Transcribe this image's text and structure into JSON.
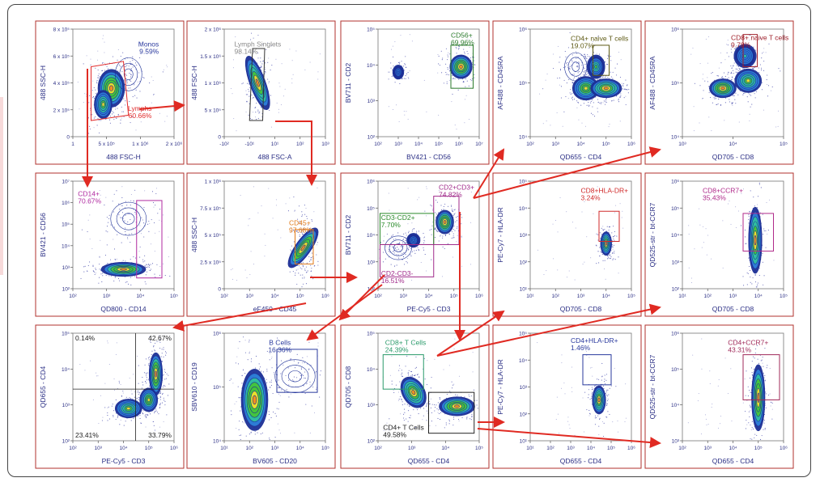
{
  "colors": {
    "panel_border": "#b0302c",
    "arrow": "#e02a22",
    "axis_text": "#2b2f85",
    "contour": "#1c2f96",
    "dots": "#5a5fb5"
  },
  "chart_data": [
    {
      "id": "p1",
      "type": "scatter",
      "xlabel": "488 FSC-H",
      "ylabel": "488 SSC-H",
      "x_ticks": [
        "1",
        "5 x 10⁵",
        "1 x 10⁶",
        "2 x 10⁶"
      ],
      "y_ticks": [
        "8 x 10⁵",
        "6 x 10⁵",
        "4 x 10⁵",
        "2 x 10⁵",
        "0"
      ],
      "gates": [
        {
          "name": "Monos",
          "value": "9.59%",
          "color": "#2b3a9e"
        },
        {
          "name": "Lymphs",
          "value": "60.66%",
          "color": "#e12b2b"
        }
      ]
    },
    {
      "id": "p2",
      "type": "scatter",
      "xlabel": "488 FSC-A",
      "ylabel": "488 FSC-H",
      "x_ticks": [
        "-10²",
        "-10¹",
        "10¹",
        "10²",
        "10³"
      ],
      "y_ticks": [
        "2 x 10⁶",
        "1.5 x 10⁶",
        "1 x 10⁶",
        "5 x 10⁵",
        "0"
      ],
      "gates": [
        {
          "name": "Lymph Singlets",
          "value": "98.14%",
          "color": "#8a8a8a"
        }
      ]
    },
    {
      "id": "p3",
      "type": "scatter",
      "xlabel": "BV421 - CD56",
      "ylabel": "BV711 - CD2",
      "x_ticks": [
        "10²",
        "10³",
        "10⁴",
        "10⁵",
        "10⁶",
        "10⁷"
      ],
      "y_ticks": [
        "10⁵",
        "10⁴",
        "10³",
        "10²"
      ],
      "gates": [
        {
          "name": "CD56+",
          "value": "69.96%",
          "color": "#2a7a2a"
        }
      ]
    },
    {
      "id": "p4",
      "type": "scatter",
      "xlabel": "QD655 - CD4",
      "ylabel": "AF488 - CD45RA",
      "x_ticks": [
        "10²",
        "10³",
        "10⁴",
        "10⁵",
        "10⁶"
      ],
      "y_ticks": [
        "10⁶",
        "10⁵",
        "10⁴"
      ],
      "gates": [
        {
          "name": "CD4+ naive T cells",
          "value": "19.07%",
          "color": "#5e5a14"
        }
      ]
    },
    {
      "id": "p5",
      "type": "scatter",
      "xlabel": "QD705 - CD8",
      "ylabel": "AF488 - CD45RA",
      "x_ticks": [
        "10³",
        "10⁴",
        "10⁵"
      ],
      "y_ticks": [
        "10⁶",
        "10⁵",
        "10⁴"
      ],
      "gates": [
        {
          "name": "CD8+ naive T cells",
          "value": "9.78%",
          "color": "#a0202a"
        }
      ]
    },
    {
      "id": "p6",
      "type": "scatter",
      "xlabel": "QD800 - CD14",
      "ylabel": "BV421 - CD56",
      "x_ticks": [
        "10²",
        "10³",
        "10⁴",
        "10⁵"
      ],
      "y_ticks": [
        "10⁷",
        "10⁶",
        "10⁵",
        "10⁴",
        "10³",
        "10²"
      ],
      "gates": [
        {
          "name": "CD14+",
          "value": "70.67%",
          "color": "#b02aa0"
        }
      ]
    },
    {
      "id": "p7",
      "type": "scatter",
      "xlabel": "eF450 - CD45",
      "ylabel": "488 SSC-H",
      "x_ticks": [
        "10²",
        "10³",
        "10⁴",
        "10⁵",
        "10⁶"
      ],
      "y_ticks": [
        "1 x 10⁶",
        "7.5 x 10⁵",
        "5 x 10⁵",
        "2.5 x 10⁵",
        "0"
      ],
      "gates": [
        {
          "name": "CD45+",
          "value": "97.68%",
          "color": "#e07a1a"
        }
      ]
    },
    {
      "id": "p8",
      "type": "scatter",
      "xlabel": "PE-Cy5 - CD3",
      "ylabel": "BV711 - CD2",
      "x_ticks": [
        "10²",
        "10³",
        "10⁴",
        "10⁵",
        "10⁶"
      ],
      "y_ticks": [
        "10⁶",
        "10⁵",
        "10⁴",
        "10³",
        "10²"
      ],
      "gates": [
        {
          "name": "CD2+CD3+",
          "value": "74.82%",
          "color": "#a02a8a"
        },
        {
          "name": "CD3-CD2+",
          "value": "7.70%",
          "color": "#2a8a2a"
        },
        {
          "name": "CD2-CD3-",
          "value": "16.51%",
          "color": "#a02a8a"
        }
      ]
    },
    {
      "id": "p9",
      "type": "scatter",
      "xlabel": "QD705 - CD8",
      "ylabel": "PE-Cy7 - HLA-DR",
      "x_ticks": [
        "10¹",
        "10²",
        "10³",
        "10⁴",
        "10⁵"
      ],
      "y_ticks": [
        "10⁵",
        "10⁴",
        "10³",
        "10²",
        "10¹"
      ],
      "gates": [
        {
          "name": "CD8+HLA-DR+",
          "value": "3.24%",
          "color": "#d02a2a"
        }
      ]
    },
    {
      "id": "p10",
      "type": "scatter",
      "xlabel": "QD705 - CD8",
      "ylabel": "QD525-str - bt-CCR7",
      "x_ticks": [
        "10¹",
        "10²",
        "10³",
        "10⁴",
        "10⁵"
      ],
      "y_ticks": [
        "10⁶",
        "10⁵",
        "10⁴",
        "10³",
        "10²"
      ],
      "gates": [
        {
          "name": "CD8+CCR7+",
          "value": "35.43%",
          "color": "#b02a8a"
        }
      ]
    },
    {
      "id": "p11",
      "type": "scatter",
      "xlabel": "PE-Cy5 - CD3",
      "ylabel": "QD655 - CD4",
      "x_ticks": [
        "10²",
        "10³",
        "10⁴",
        "10⁵",
        "10⁶"
      ],
      "y_ticks": [
        "10⁵",
        "10⁴",
        "10³",
        "10²"
      ],
      "quadrants": [
        "0.14%",
        "42.67%",
        "23.41%",
        "33.79%"
      ]
    },
    {
      "id": "p12",
      "type": "scatter",
      "xlabel": "BV605 - CD20",
      "ylabel": "SBV610 - CD19",
      "x_ticks": [
        "10¹",
        "10²",
        "10³",
        "10⁴",
        "10⁵"
      ],
      "y_ticks": [
        "10⁶",
        "10⁵",
        "10⁴"
      ],
      "gates": [
        {
          "name": "B Cells",
          "value": "16.36%",
          "color": "#2a3a9e"
        }
      ]
    },
    {
      "id": "p13",
      "type": "scatter",
      "xlabel": "QD655 - CD4",
      "ylabel": "QD705 - CD8",
      "x_ticks": [
        "10²",
        "10³",
        "10⁴",
        "10⁵"
      ],
      "y_ticks": [
        "10⁵",
        "10⁴",
        "10³",
        "10²"
      ],
      "gates": [
        {
          "name": "CD8+ T Cells",
          "value": "24.39%",
          "color": "#2a9a6a"
        },
        {
          "name": "CD4+ T Cells",
          "value": "49.58%",
          "color": "#222222"
        }
      ]
    },
    {
      "id": "p14",
      "type": "scatter",
      "xlabel": "QD655 - CD4",
      "ylabel": "PE-Cy7 - HLA-DR",
      "x_ticks": [
        "10¹",
        "10²",
        "10³",
        "10⁴",
        "10⁵",
        "10⁶"
      ],
      "y_ticks": [
        "10⁵",
        "10⁴",
        "10³",
        "10²",
        "10¹"
      ],
      "gates": [
        {
          "name": "CD4+HLA-DR+",
          "value": "1.46%",
          "color": "#2a3a9e"
        }
      ]
    },
    {
      "id": "p15",
      "type": "scatter",
      "xlabel": "QD655 - CD4",
      "ylabel": "QD525-str - bt-CCR7",
      "x_ticks": [
        "10²",
        "10³",
        "10⁴",
        "10⁵",
        "10⁶"
      ],
      "y_ticks": [
        "10⁶",
        "10⁵",
        "10⁴",
        "10³"
      ],
      "gates": [
        {
          "name": "CD4+CCR7+",
          "value": "43.31%",
          "color": "#a02a5a"
        }
      ]
    }
  ]
}
